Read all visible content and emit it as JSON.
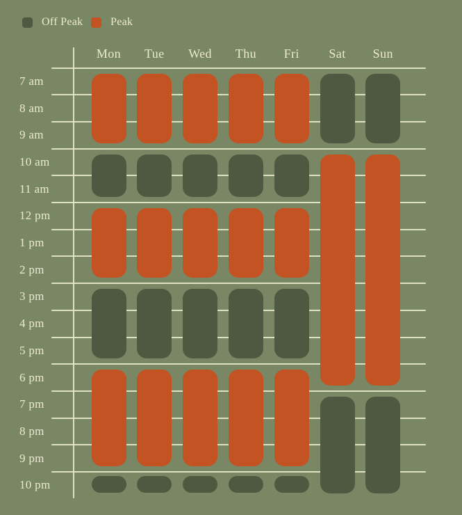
{
  "colors": {
    "background": "#7a8764",
    "off_peak": "#4d5a41",
    "peak": "#c35322",
    "text": "#ece9d3",
    "gridline": "#e6e8ca"
  },
  "legend": {
    "items": [
      {
        "label": "Off Peak",
        "type": "off_peak"
      },
      {
        "label": "Peak",
        "type": "peak"
      }
    ]
  },
  "chart_data": {
    "type": "heatmap",
    "title": "",
    "xlabel": "",
    "ylabel": "",
    "grid": true,
    "legend_position": "top-left",
    "legend_entries": [
      "Off Peak",
      "Peak"
    ],
    "x_categories": [
      "Mon",
      "Tue",
      "Wed",
      "Thu",
      "Fri",
      "Sat",
      "Sun"
    ],
    "y_categories": [
      "7 am",
      "8 am",
      "9 am",
      "10 am",
      "11 am",
      "12 pm",
      "1 pm",
      "2 pm",
      "3 pm",
      "4 pm",
      "5 pm",
      "6 pm",
      "7 pm",
      "8 pm",
      "9 pm",
      "10 pm"
    ],
    "series": [
      {
        "day": "Mon",
        "segments": [
          {
            "type": "peak",
            "from": "7 am",
            "to": "10 am",
            "start_row": 0,
            "rows": 3
          },
          {
            "type": "off_peak",
            "from": "10 am",
            "to": "12 pm",
            "start_row": 3,
            "rows": 2
          },
          {
            "type": "peak",
            "from": "12 pm",
            "to": "3 pm",
            "start_row": 5,
            "rows": 3
          },
          {
            "type": "off_peak",
            "from": "3 pm",
            "to": "6 pm",
            "start_row": 8,
            "rows": 3
          },
          {
            "type": "peak",
            "from": "6 pm",
            "to": "10 pm",
            "start_row": 11,
            "rows": 4
          },
          {
            "type": "off_peak",
            "from": "10 pm",
            "to": "11 pm",
            "start_row": 15,
            "rows": 1,
            "small": true
          }
        ]
      },
      {
        "day": "Tue",
        "segments": [
          {
            "type": "peak",
            "from": "7 am",
            "to": "10 am",
            "start_row": 0,
            "rows": 3
          },
          {
            "type": "off_peak",
            "from": "10 am",
            "to": "12 pm",
            "start_row": 3,
            "rows": 2
          },
          {
            "type": "peak",
            "from": "12 pm",
            "to": "3 pm",
            "start_row": 5,
            "rows": 3
          },
          {
            "type": "off_peak",
            "from": "3 pm",
            "to": "6 pm",
            "start_row": 8,
            "rows": 3
          },
          {
            "type": "peak",
            "from": "6 pm",
            "to": "10 pm",
            "start_row": 11,
            "rows": 4
          },
          {
            "type": "off_peak",
            "from": "10 pm",
            "to": "11 pm",
            "start_row": 15,
            "rows": 1,
            "small": true
          }
        ]
      },
      {
        "day": "Wed",
        "segments": [
          {
            "type": "peak",
            "from": "7 am",
            "to": "10 am",
            "start_row": 0,
            "rows": 3
          },
          {
            "type": "off_peak",
            "from": "10 am",
            "to": "12 pm",
            "start_row": 3,
            "rows": 2
          },
          {
            "type": "peak",
            "from": "12 pm",
            "to": "3 pm",
            "start_row": 5,
            "rows": 3
          },
          {
            "type": "off_peak",
            "from": "3 pm",
            "to": "6 pm",
            "start_row": 8,
            "rows": 3
          },
          {
            "type": "peak",
            "from": "6 pm",
            "to": "10 pm",
            "start_row": 11,
            "rows": 4
          },
          {
            "type": "off_peak",
            "from": "10 pm",
            "to": "11 pm",
            "start_row": 15,
            "rows": 1,
            "small": true
          }
        ]
      },
      {
        "day": "Thu",
        "segments": [
          {
            "type": "peak",
            "from": "7 am",
            "to": "10 am",
            "start_row": 0,
            "rows": 3
          },
          {
            "type": "off_peak",
            "from": "10 am",
            "to": "12 pm",
            "start_row": 3,
            "rows": 2
          },
          {
            "type": "peak",
            "from": "12 pm",
            "to": "3 pm",
            "start_row": 5,
            "rows": 3
          },
          {
            "type": "off_peak",
            "from": "3 pm",
            "to": "6 pm",
            "start_row": 8,
            "rows": 3
          },
          {
            "type": "peak",
            "from": "6 pm",
            "to": "10 pm",
            "start_row": 11,
            "rows": 4
          },
          {
            "type": "off_peak",
            "from": "10 pm",
            "to": "11 pm",
            "start_row": 15,
            "rows": 1,
            "small": true
          }
        ]
      },
      {
        "day": "Fri",
        "segments": [
          {
            "type": "peak",
            "from": "7 am",
            "to": "10 am",
            "start_row": 0,
            "rows": 3
          },
          {
            "type": "off_peak",
            "from": "10 am",
            "to": "12 pm",
            "start_row": 3,
            "rows": 2
          },
          {
            "type": "peak",
            "from": "12 pm",
            "to": "3 pm",
            "start_row": 5,
            "rows": 3
          },
          {
            "type": "off_peak",
            "from": "3 pm",
            "to": "6 pm",
            "start_row": 8,
            "rows": 3
          },
          {
            "type": "peak",
            "from": "6 pm",
            "to": "10 pm",
            "start_row": 11,
            "rows": 4
          },
          {
            "type": "off_peak",
            "from": "10 pm",
            "to": "11 pm",
            "start_row": 15,
            "rows": 1,
            "small": true
          }
        ]
      },
      {
        "day": "Sat",
        "segments": [
          {
            "type": "off_peak",
            "from": "7 am",
            "to": "10 am",
            "start_row": 0,
            "rows": 3
          },
          {
            "type": "peak",
            "from": "10 am",
            "to": "7 pm",
            "start_row": 3,
            "rows": 9
          },
          {
            "type": "off_peak",
            "from": "7 pm",
            "to": "11 pm",
            "start_row": 12,
            "rows": 4
          }
        ]
      },
      {
        "day": "Sun",
        "segments": [
          {
            "type": "off_peak",
            "from": "7 am",
            "to": "10 am",
            "start_row": 0,
            "rows": 3
          },
          {
            "type": "peak",
            "from": "10 am",
            "to": "7 pm",
            "start_row": 3,
            "rows": 9
          },
          {
            "type": "off_peak",
            "from": "7 pm",
            "to": "11 pm",
            "start_row": 12,
            "rows": 4
          }
        ]
      }
    ]
  }
}
